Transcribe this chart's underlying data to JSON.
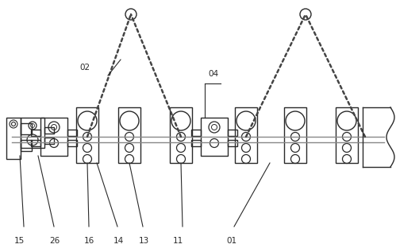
{
  "bg_color": "#ffffff",
  "lc": "#2a2a2a",
  "chain_color": "#444444",
  "fig_width": 4.99,
  "fig_height": 3.17,
  "dpi": 100,
  "label_fs": 7.5
}
